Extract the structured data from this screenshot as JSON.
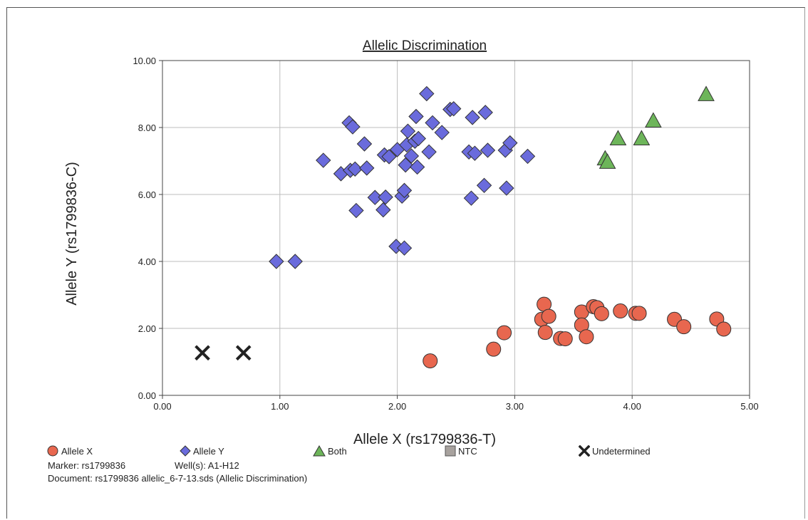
{
  "chart_data": {
    "type": "scatter",
    "title": "Allelic Discrimination",
    "xlabel": "Allele X (rs1799836-T)",
    "ylabel": "Allele Y (rs1799836-C)",
    "xlim": [
      0,
      5
    ],
    "ylim": [
      0,
      10
    ],
    "x_ticks": [
      "0.00",
      "1.00",
      "2.00",
      "3.00",
      "4.00",
      "5.00"
    ],
    "y_ticks": [
      "0.00",
      "2.00",
      "4.00",
      "6.00",
      "8.00",
      "10.00"
    ],
    "grid": true,
    "legend_position": "bottom",
    "series": [
      {
        "name": "Allele X",
        "marker": "circle",
        "color": "#e8674f",
        "points": [
          [
            2.28,
            1.03
          ],
          [
            2.82,
            1.38
          ],
          [
            2.91,
            1.87
          ],
          [
            3.23,
            2.27
          ],
          [
            3.25,
            2.72
          ],
          [
            3.26,
            1.88
          ],
          [
            3.29,
            2.36
          ],
          [
            3.39,
            1.7
          ],
          [
            3.43,
            1.69
          ],
          [
            3.57,
            2.49
          ],
          [
            3.57,
            2.1
          ],
          [
            3.61,
            1.75
          ],
          [
            3.67,
            2.65
          ],
          [
            3.7,
            2.62
          ],
          [
            3.74,
            2.44
          ],
          [
            3.9,
            2.52
          ],
          [
            4.03,
            2.45
          ],
          [
            4.06,
            2.45
          ],
          [
            4.36,
            2.27
          ],
          [
            4.44,
            2.05
          ],
          [
            4.72,
            2.28
          ],
          [
            4.78,
            1.98
          ]
        ]
      },
      {
        "name": "Allele Y",
        "marker": "diamond",
        "color": "#6a6bdc",
        "points": [
          [
            0.97,
            4.0
          ],
          [
            1.13,
            4.0
          ],
          [
            1.37,
            7.02
          ],
          [
            1.52,
            6.62
          ],
          [
            1.59,
            8.14
          ],
          [
            1.6,
            6.72
          ],
          [
            1.62,
            8.02
          ],
          [
            1.64,
            6.76
          ],
          [
            1.65,
            5.52
          ],
          [
            1.72,
            7.51
          ],
          [
            1.74,
            6.79
          ],
          [
            1.81,
            5.91
          ],
          [
            1.88,
            5.54
          ],
          [
            1.89,
            7.18
          ],
          [
            1.9,
            5.92
          ],
          [
            1.93,
            7.13
          ],
          [
            1.99,
            4.45
          ],
          [
            2.0,
            7.34
          ],
          [
            2.04,
            5.95
          ],
          [
            2.06,
            6.12
          ],
          [
            2.06,
            4.4
          ],
          [
            2.07,
            6.88
          ],
          [
            2.08,
            7.48
          ],
          [
            2.09,
            7.89
          ],
          [
            2.12,
            7.15
          ],
          [
            2.15,
            7.59
          ],
          [
            2.16,
            8.33
          ],
          [
            2.17,
            6.82
          ],
          [
            2.18,
            7.67
          ],
          [
            2.25,
            9.01
          ],
          [
            2.27,
            7.27
          ],
          [
            2.3,
            8.14
          ],
          [
            2.38,
            7.85
          ],
          [
            2.45,
            8.54
          ],
          [
            2.48,
            8.56
          ],
          [
            2.61,
            7.27
          ],
          [
            2.63,
            5.89
          ],
          [
            2.64,
            8.3
          ],
          [
            2.66,
            7.23
          ],
          [
            2.74,
            6.27
          ],
          [
            2.75,
            8.45
          ],
          [
            2.77,
            7.32
          ],
          [
            2.92,
            7.32
          ],
          [
            2.93,
            6.19
          ],
          [
            2.96,
            7.54
          ],
          [
            3.11,
            7.14
          ]
        ]
      },
      {
        "name": "Both",
        "marker": "triangle",
        "color": "#6db55a",
        "points": [
          [
            3.77,
            7.05
          ],
          [
            3.79,
            6.95
          ],
          [
            3.88,
            7.65
          ],
          [
            4.08,
            7.65
          ],
          [
            4.18,
            8.18
          ],
          [
            4.63,
            8.97
          ]
        ]
      },
      {
        "name": "NTC",
        "marker": "square",
        "color": "#a8a29e",
        "points": []
      },
      {
        "name": "Undetermined",
        "marker": "x",
        "color": "#222222",
        "points": [
          [
            0.34,
            1.27
          ],
          [
            0.69,
            1.27
          ]
        ]
      }
    ]
  },
  "info": {
    "marker": "Marker: rs1799836",
    "wells": "Well(s): A1-H12",
    "document": "Document: rs1799836 allelic_6-7-13.sds (Allelic Discrimination)"
  }
}
